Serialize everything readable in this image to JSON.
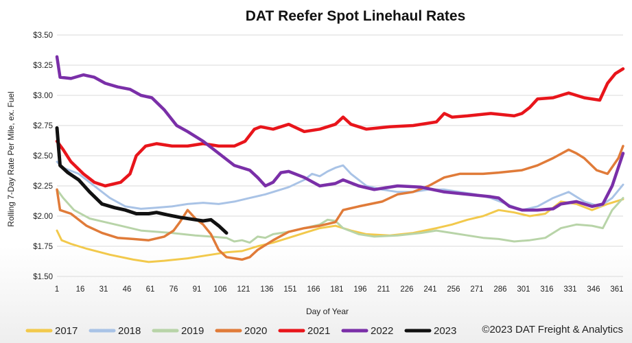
{
  "chart_data": {
    "type": "line",
    "title": "DAT Reefer Spot Linehaul Rates",
    "xlabel": "Day of Year",
    "ylabel": "Rolling 7-Day Rate Per Mile, ex. Fuel",
    "xlim": [
      1,
      365
    ],
    "ylim": [
      1.5,
      3.5
    ],
    "grid": true,
    "legend": "bottom",
    "y_ticks": [
      {
        "value": 1.5,
        "label": "$1.50"
      },
      {
        "value": 1.75,
        "label": "$1.75"
      },
      {
        "value": 2.0,
        "label": "$2.00"
      },
      {
        "value": 2.25,
        "label": "$2.25"
      },
      {
        "value": 2.5,
        "label": "$2.50"
      },
      {
        "value": 2.75,
        "label": "$2.75"
      },
      {
        "value": 3.0,
        "label": "$3.00"
      },
      {
        "value": 3.25,
        "label": "$3.25"
      },
      {
        "value": 3.5,
        "label": "$3.50"
      }
    ],
    "x_ticks": [
      1,
      16,
      31,
      46,
      61,
      76,
      91,
      106,
      121,
      136,
      151,
      166,
      181,
      196,
      211,
      226,
      241,
      256,
      271,
      286,
      301,
      316,
      331,
      346,
      361
    ],
    "copyright": "©2023 DAT Freight & Analytics",
    "series": [
      {
        "name": "2017",
        "color": "#f2c94c",
        "width": 3,
        "points": [
          [
            1,
            1.88
          ],
          [
            4,
            1.8
          ],
          [
            10,
            1.77
          ],
          [
            20,
            1.73
          ],
          [
            35,
            1.68
          ],
          [
            50,
            1.64
          ],
          [
            60,
            1.62
          ],
          [
            70,
            1.63
          ],
          [
            85,
            1.65
          ],
          [
            100,
            1.68
          ],
          [
            110,
            1.7
          ],
          [
            120,
            1.71
          ],
          [
            130,
            1.75
          ],
          [
            140,
            1.78
          ],
          [
            150,
            1.82
          ],
          [
            160,
            1.86
          ],
          [
            170,
            1.9
          ],
          [
            180,
            1.92
          ],
          [
            190,
            1.88
          ],
          [
            200,
            1.85
          ],
          [
            215,
            1.84
          ],
          [
            230,
            1.86
          ],
          [
            245,
            1.9
          ],
          [
            255,
            1.93
          ],
          [
            265,
            1.97
          ],
          [
            275,
            2.0
          ],
          [
            285,
            2.05
          ],
          [
            295,
            2.03
          ],
          [
            305,
            2.0
          ],
          [
            315,
            2.02
          ],
          [
            325,
            2.12
          ],
          [
            335,
            2.1
          ],
          [
            345,
            2.05
          ],
          [
            355,
            2.1
          ],
          [
            365,
            2.14
          ]
        ]
      },
      {
        "name": "2018",
        "color": "#a9c3e6",
        "width": 3,
        "points": [
          [
            1,
            2.45
          ],
          [
            5,
            2.4
          ],
          [
            15,
            2.35
          ],
          [
            25,
            2.25
          ],
          [
            35,
            2.15
          ],
          [
            45,
            2.08
          ],
          [
            55,
            2.06
          ],
          [
            65,
            2.07
          ],
          [
            75,
            2.08
          ],
          [
            85,
            2.1
          ],
          [
            95,
            2.11
          ],
          [
            105,
            2.1
          ],
          [
            115,
            2.12
          ],
          [
            125,
            2.15
          ],
          [
            135,
            2.18
          ],
          [
            145,
            2.22
          ],
          [
            150,
            2.24
          ],
          [
            160,
            2.3
          ],
          [
            165,
            2.35
          ],
          [
            170,
            2.33
          ],
          [
            175,
            2.37
          ],
          [
            180,
            2.4
          ],
          [
            185,
            2.42
          ],
          [
            190,
            2.35
          ],
          [
            195,
            2.3
          ],
          [
            200,
            2.25
          ],
          [
            210,
            2.22
          ],
          [
            220,
            2.2
          ],
          [
            230,
            2.2
          ],
          [
            240,
            2.22
          ],
          [
            250,
            2.22
          ],
          [
            260,
            2.2
          ],
          [
            270,
            2.18
          ],
          [
            280,
            2.15
          ],
          [
            290,
            2.1
          ],
          [
            300,
            2.05
          ],
          [
            310,
            2.08
          ],
          [
            320,
            2.15
          ],
          [
            330,
            2.2
          ],
          [
            340,
            2.12
          ],
          [
            350,
            2.08
          ],
          [
            358,
            2.15
          ],
          [
            365,
            2.26
          ]
        ]
      },
      {
        "name": "2019",
        "color": "#b8d4a8",
        "width": 3,
        "points": [
          [
            1,
            2.22
          ],
          [
            5,
            2.15
          ],
          [
            12,
            2.05
          ],
          [
            22,
            1.98
          ],
          [
            32,
            1.95
          ],
          [
            42,
            1.92
          ],
          [
            55,
            1.88
          ],
          [
            65,
            1.87
          ],
          [
            75,
            1.86
          ],
          [
            90,
            1.84
          ],
          [
            100,
            1.83
          ],
          [
            110,
            1.82
          ],
          [
            115,
            1.79
          ],
          [
            120,
            1.8
          ],
          [
            125,
            1.78
          ],
          [
            130,
            1.83
          ],
          [
            135,
            1.82
          ],
          [
            140,
            1.85
          ],
          [
            150,
            1.87
          ],
          [
            160,
            1.9
          ],
          [
            170,
            1.93
          ],
          [
            175,
            1.97
          ],
          [
            180,
            1.96
          ],
          [
            185,
            1.9
          ],
          [
            195,
            1.85
          ],
          [
            205,
            1.83
          ],
          [
            220,
            1.84
          ],
          [
            235,
            1.86
          ],
          [
            245,
            1.88
          ],
          [
            255,
            1.86
          ],
          [
            265,
            1.84
          ],
          [
            275,
            1.82
          ],
          [
            285,
            1.81
          ],
          [
            295,
            1.79
          ],
          [
            305,
            1.8
          ],
          [
            315,
            1.82
          ],
          [
            325,
            1.9
          ],
          [
            335,
            1.93
          ],
          [
            345,
            1.92
          ],
          [
            352,
            1.9
          ],
          [
            358,
            2.05
          ],
          [
            365,
            2.15
          ]
        ]
      },
      {
        "name": "2020",
        "color": "#e07b39",
        "width": 3.5,
        "points": [
          [
            1,
            2.22
          ],
          [
            3,
            2.05
          ],
          [
            10,
            2.02
          ],
          [
            20,
            1.92
          ],
          [
            30,
            1.86
          ],
          [
            40,
            1.82
          ],
          [
            50,
            1.81
          ],
          [
            60,
            1.8
          ],
          [
            70,
            1.83
          ],
          [
            76,
            1.88
          ],
          [
            80,
            1.95
          ],
          [
            85,
            2.05
          ],
          [
            90,
            1.98
          ],
          [
            95,
            1.93
          ],
          [
            100,
            1.85
          ],
          [
            105,
            1.72
          ],
          [
            110,
            1.66
          ],
          [
            120,
            1.64
          ],
          [
            125,
            1.66
          ],
          [
            130,
            1.72
          ],
          [
            140,
            1.8
          ],
          [
            150,
            1.87
          ],
          [
            160,
            1.9
          ],
          [
            170,
            1.92
          ],
          [
            180,
            1.95
          ],
          [
            185,
            2.05
          ],
          [
            195,
            2.08
          ],
          [
            210,
            2.12
          ],
          [
            220,
            2.18
          ],
          [
            230,
            2.2
          ],
          [
            240,
            2.25
          ],
          [
            250,
            2.32
          ],
          [
            260,
            2.35
          ],
          [
            275,
            2.35
          ],
          [
            285,
            2.36
          ],
          [
            300,
            2.38
          ],
          [
            310,
            2.42
          ],
          [
            320,
            2.48
          ],
          [
            330,
            2.55
          ],
          [
            335,
            2.52
          ],
          [
            340,
            2.48
          ],
          [
            348,
            2.38
          ],
          [
            355,
            2.35
          ],
          [
            362,
            2.48
          ],
          [
            365,
            2.58
          ]
        ]
      },
      {
        "name": "2021",
        "color": "#e8151b",
        "width": 4.5,
        "points": [
          [
            1,
            2.62
          ],
          [
            5,
            2.55
          ],
          [
            10,
            2.45
          ],
          [
            18,
            2.35
          ],
          [
            25,
            2.28
          ],
          [
            32,
            2.25
          ],
          [
            42,
            2.28
          ],
          [
            48,
            2.35
          ],
          [
            52,
            2.5
          ],
          [
            58,
            2.58
          ],
          [
            65,
            2.6
          ],
          [
            75,
            2.58
          ],
          [
            85,
            2.58
          ],
          [
            95,
            2.6
          ],
          [
            105,
            2.58
          ],
          [
            115,
            2.58
          ],
          [
            122,
            2.62
          ],
          [
            128,
            2.72
          ],
          [
            132,
            2.74
          ],
          [
            140,
            2.72
          ],
          [
            150,
            2.76
          ],
          [
            160,
            2.7
          ],
          [
            170,
            2.72
          ],
          [
            180,
            2.76
          ],
          [
            185,
            2.82
          ],
          [
            190,
            2.76
          ],
          [
            200,
            2.72
          ],
          [
            215,
            2.74
          ],
          [
            230,
            2.75
          ],
          [
            245,
            2.78
          ],
          [
            250,
            2.85
          ],
          [
            255,
            2.82
          ],
          [
            265,
            2.83
          ],
          [
            280,
            2.85
          ],
          [
            295,
            2.83
          ],
          [
            300,
            2.85
          ],
          [
            305,
            2.9
          ],
          [
            310,
            2.97
          ],
          [
            320,
            2.98
          ],
          [
            330,
            3.02
          ],
          [
            340,
            2.98
          ],
          [
            350,
            2.96
          ],
          [
            355,
            3.1
          ],
          [
            360,
            3.18
          ],
          [
            365,
            3.22
          ]
        ]
      },
      {
        "name": "2022",
        "color": "#7a2fa8",
        "width": 4.5,
        "points": [
          [
            1,
            3.32
          ],
          [
            3,
            3.15
          ],
          [
            10,
            3.14
          ],
          [
            18,
            3.17
          ],
          [
            25,
            3.15
          ],
          [
            32,
            3.1
          ],
          [
            40,
            3.07
          ],
          [
            48,
            3.05
          ],
          [
            55,
            3.0
          ],
          [
            62,
            2.98
          ],
          [
            70,
            2.88
          ],
          [
            78,
            2.75
          ],
          [
            85,
            2.7
          ],
          [
            95,
            2.62
          ],
          [
            105,
            2.52
          ],
          [
            115,
            2.42
          ],
          [
            125,
            2.38
          ],
          [
            130,
            2.32
          ],
          [
            135,
            2.25
          ],
          [
            140,
            2.28
          ],
          [
            145,
            2.36
          ],
          [
            150,
            2.37
          ],
          [
            160,
            2.32
          ],
          [
            170,
            2.25
          ],
          [
            180,
            2.27
          ],
          [
            185,
            2.3
          ],
          [
            195,
            2.25
          ],
          [
            205,
            2.22
          ],
          [
            220,
            2.25
          ],
          [
            235,
            2.24
          ],
          [
            250,
            2.2
          ],
          [
            265,
            2.18
          ],
          [
            280,
            2.16
          ],
          [
            285,
            2.15
          ],
          [
            292,
            2.08
          ],
          [
            300,
            2.05
          ],
          [
            310,
            2.05
          ],
          [
            320,
            2.06
          ],
          [
            325,
            2.1
          ],
          [
            335,
            2.12
          ],
          [
            345,
            2.08
          ],
          [
            352,
            2.1
          ],
          [
            358,
            2.25
          ],
          [
            365,
            2.52
          ]
        ]
      },
      {
        "name": "2023",
        "color": "#111111",
        "width": 5,
        "points": [
          [
            1,
            2.73
          ],
          [
            3,
            2.42
          ],
          [
            8,
            2.36
          ],
          [
            15,
            2.3
          ],
          [
            22,
            2.2
          ],
          [
            30,
            2.1
          ],
          [
            38,
            2.07
          ],
          [
            45,
            2.05
          ],
          [
            52,
            2.02
          ],
          [
            60,
            2.02
          ],
          [
            65,
            2.03
          ],
          [
            72,
            2.01
          ],
          [
            80,
            1.99
          ],
          [
            90,
            1.97
          ],
          [
            95,
            1.96
          ],
          [
            100,
            1.97
          ],
          [
            105,
            1.92
          ],
          [
            110,
            1.86
          ]
        ]
      }
    ]
  }
}
